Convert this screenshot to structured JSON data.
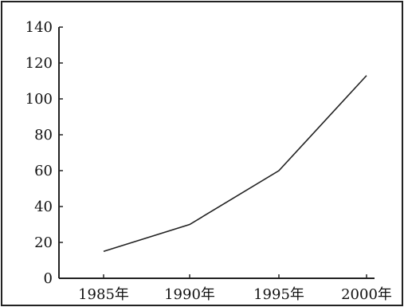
{
  "chart_data": {
    "type": "line",
    "title": "",
    "xlabel": "",
    "ylabel": "",
    "categories": [
      "1985年",
      "1990年",
      "1995年",
      "2000年"
    ],
    "series": [
      {
        "values": [
          15,
          30,
          60,
          113
        ]
      }
    ],
    "ylim": [
      0,
      140
    ],
    "yticks": [
      "0",
      "20",
      "40",
      "60",
      "80",
      "100",
      "120",
      "140"
    ],
    "grid": false,
    "legend": "none",
    "line_color": "#222222"
  }
}
